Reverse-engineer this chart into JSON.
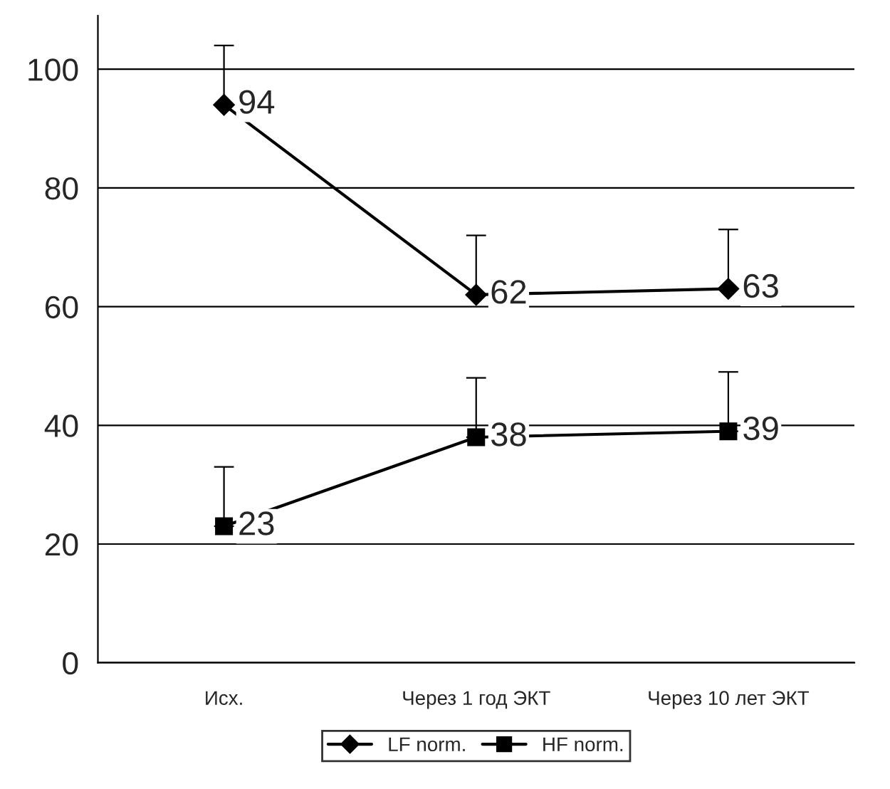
{
  "chart_data": {
    "type": "line",
    "categories": [
      "Исх.",
      "Через 1 год ЭКТ",
      "Через 10 лет ЭКТ"
    ],
    "series": [
      {
        "name": "LF norm.",
        "color": "#000000",
        "marker": "diamond",
        "values": [
          94,
          62,
          63
        ],
        "errors": [
          [
            94,
            104
          ],
          [
            62,
            72
          ],
          [
            63,
            73
          ]
        ]
      },
      {
        "name": "HF norm.",
        "color": "#000000",
        "marker": "square",
        "values": [
          23,
          38,
          39
        ],
        "errors": [
          [
            23,
            33
          ],
          [
            38,
            48
          ],
          [
            39,
            49
          ]
        ]
      }
    ],
    "ylim": [
      0,
      109
    ],
    "yticks": [
      0,
      20,
      40,
      60,
      80,
      100
    ],
    "grid": "y",
    "legend": "bottom",
    "data_labels": true,
    "line_style": "solid"
  }
}
